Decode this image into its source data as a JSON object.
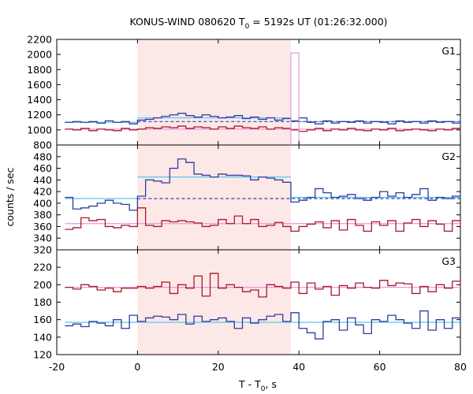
{
  "chart_data": {
    "type": "line",
    "title": "KONUS-WIND 080620 T",
    "title_sub": "0",
    "title_rest": " = 5192s UT (01:26:32.000)",
    "xlabel": "T - T",
    "xlabel_sub": "0",
    "xlabel_rest": ", s",
    "ylabel": "counts / sec",
    "xlim": [
      -20,
      80
    ],
    "x_ticks": [
      "-20",
      "0",
      "20",
      "40",
      "60",
      "80"
    ],
    "shaded_interval": [
      0,
      38
    ],
    "colors": {
      "shade": "#fde8e8",
      "red": "#a8182c",
      "blue": "#2b3f9e",
      "cyan": "#59c6ea",
      "pink": "#e69ad8",
      "dash": "#3b3bb5"
    },
    "panels": [
      {
        "label": "G1",
        "ylim": [
          800,
          2200
        ],
        "y_ticks": [
          800,
          1000,
          1200,
          1400,
          1600,
          1800,
          2000,
          2200
        ],
        "series": [
          {
            "role": "blue",
            "x": [
              -18,
              -16,
              -14,
              -12,
              -10,
              -8,
              -6,
              -4,
              -2,
              0,
              2,
              4,
              6,
              8,
              10,
              12,
              14,
              16,
              18,
              20,
              22,
              24,
              26,
              28,
              30,
              32,
              34,
              36,
              38,
              40,
              42,
              44,
              46,
              48,
              50,
              52,
              54,
              56,
              58,
              60,
              62,
              64,
              66,
              68,
              70,
              72,
              74,
              76,
              78,
              80
            ],
            "values": [
              1100,
              1110,
              1100,
              1110,
              1090,
              1120,
              1100,
              1110,
              1080,
              1130,
              1140,
              1160,
              1180,
              1200,
              1220,
              1190,
              1170,
              1200,
              1180,
              1160,
              1170,
              1190,
              1150,
              1170,
              1140,
              1160,
              1130,
              1150,
              1120,
              1160,
              1100,
              1080,
              1120,
              1090,
              1110,
              1100,
              1120,
              1090,
              1110,
              1100,
              1080,
              1120,
              1100,
              1110,
              1090,
              1120,
              1100,
              1110,
              1090,
              1120
            ]
          },
          {
            "role": "red",
            "x": [
              -18,
              -16,
              -14,
              -12,
              -10,
              -8,
              -6,
              -4,
              -2,
              0,
              2,
              4,
              6,
              8,
              10,
              12,
              14,
              16,
              18,
              20,
              22,
              24,
              26,
              28,
              30,
              32,
              34,
              36,
              38,
              40,
              42,
              44,
              46,
              48,
              50,
              52,
              54,
              56,
              58,
              60,
              62,
              64,
              66,
              68,
              70,
              72,
              74,
              76,
              78,
              80
            ],
            "values": [
              1010,
              1000,
              1020,
              990,
              1010,
              1000,
              990,
              1020,
              1000,
              1010,
              1030,
              1020,
              1040,
              1030,
              1050,
              1020,
              1040,
              1030,
              1010,
              1040,
              1020,
              1050,
              1030,
              1020,
              1040,
              1010,
              1030,
              1020,
              1000,
              980,
              1000,
              1020,
              990,
              1010,
              1000,
              1020,
              1000,
              990,
              1010,
              1000,
              1020,
              990,
              1000,
              1010,
              1000,
              990,
              1010,
              1000,
              1020,
              1000
            ]
          },
          {
            "role": "pink_outline",
            "x0": 38,
            "x1": 40,
            "value": 2020
          }
        ],
        "fits": [
          {
            "role": "cyan",
            "x0": -18,
            "x1": 0,
            "value": 1100
          },
          {
            "role": "cyan",
            "x0": 0,
            "x1": 38,
            "value": 1160
          },
          {
            "role": "cyan",
            "x0": 38,
            "x1": 80,
            "value": 1110
          },
          {
            "role": "pink",
            "x0": -18,
            "x1": 80,
            "value": 1010
          },
          {
            "role": "dash",
            "x0": 0,
            "x1": 80,
            "value": 1110
          }
        ]
      },
      {
        "label": "G2",
        "ylim": [
          320,
          500
        ],
        "y_ticks": [
          320,
          340,
          360,
          380,
          400,
          420,
          440,
          460,
          480
        ],
        "series": [
          {
            "role": "blue",
            "x": [
              -18,
              -16,
              -14,
              -12,
              -10,
              -8,
              -6,
              -4,
              -2,
              0,
              2,
              4,
              6,
              8,
              10,
              12,
              14,
              16,
              18,
              20,
              22,
              24,
              26,
              28,
              30,
              32,
              34,
              36,
              38,
              40,
              42,
              44,
              46,
              48,
              50,
              52,
              54,
              56,
              58,
              60,
              62,
              64,
              66,
              68,
              70,
              72,
              74,
              76,
              78,
              80
            ],
            "values": [
              410,
              390,
              392,
              395,
              400,
              405,
              400,
              398,
              388,
              412,
              440,
              438,
              435,
              460,
              476,
              470,
              450,
              448,
              445,
              450,
              448,
              448,
              447,
              440,
              445,
              443,
              440,
              436,
              402,
              405,
              410,
              425,
              418,
              410,
              412,
              415,
              408,
              405,
              410,
              420,
              412,
              418,
              410,
              415,
              425,
              405,
              410,
              408,
              412,
              415
            ]
          },
          {
            "role": "red",
            "x": [
              -18,
              -16,
              -14,
              -12,
              -10,
              -8,
              -6,
              -4,
              -2,
              0,
              2,
              4,
              6,
              8,
              10,
              12,
              14,
              16,
              18,
              20,
              22,
              24,
              26,
              28,
              30,
              32,
              34,
              36,
              38,
              40,
              42,
              44,
              46,
              48,
              50,
              52,
              54,
              56,
              58,
              60,
              62,
              64,
              66,
              68,
              70,
              72,
              74,
              76,
              78,
              80
            ],
            "values": [
              355,
              358,
              375,
              370,
              372,
              360,
              358,
              362,
              360,
              392,
              362,
              360,
              370,
              368,
              370,
              368,
              366,
              360,
              362,
              372,
              365,
              378,
              365,
              372,
              360,
              362,
              367,
              360,
              352,
              360,
              364,
              368,
              358,
              370,
              354,
              372,
              362,
              352,
              368,
              362,
              370,
              352,
              366,
              372,
              360,
              370,
              364,
              352,
              370,
              358
            ]
          }
        ],
        "fits": [
          {
            "role": "cyan",
            "x0": -18,
            "x1": 0,
            "value": 408
          },
          {
            "role": "cyan",
            "x0": 0,
            "x1": 38,
            "value": 445
          },
          {
            "role": "cyan",
            "x0": 38,
            "x1": 80,
            "value": 410
          },
          {
            "role": "pink",
            "x0": -18,
            "x1": 80,
            "value": 365
          },
          {
            "role": "dash",
            "x0": 0,
            "x1": 80,
            "value": 408
          }
        ]
      },
      {
        "label": "G3",
        "ylim": [
          120,
          240
        ],
        "y_ticks": [
          120,
          140,
          160,
          180,
          200,
          220
        ],
        "series": [
          {
            "role": "red",
            "x": [
              -18,
              -16,
              -14,
              -12,
              -10,
              -8,
              -6,
              -4,
              -2,
              0,
              2,
              4,
              6,
              8,
              10,
              12,
              14,
              16,
              18,
              20,
              22,
              24,
              26,
              28,
              30,
              32,
              34,
              36,
              38,
              40,
              42,
              44,
              46,
              48,
              50,
              52,
              54,
              56,
              58,
              60,
              62,
              64,
              66,
              68,
              70,
              72,
              74,
              76,
              78,
              80
            ],
            "values": [
              197,
              195,
              200,
              198,
              194,
              196,
              192,
              196,
              196,
              198,
              196,
              198,
              203,
              190,
              200,
              196,
              210,
              187,
              213,
              196,
              200,
              197,
              192,
              194,
              186,
              200,
              198,
              196,
              203,
              190,
              202,
              195,
              198,
              188,
              199,
              196,
              202,
              197,
              196,
              205,
              199,
              202,
              201,
              190,
              198,
              192,
              200,
              196,
              204,
              198
            ]
          },
          {
            "role": "blue",
            "x": [
              -18,
              -16,
              -14,
              -12,
              -10,
              -8,
              -6,
              -4,
              -2,
              0,
              2,
              4,
              6,
              8,
              10,
              12,
              14,
              16,
              18,
              20,
              22,
              24,
              26,
              28,
              30,
              32,
              34,
              36,
              38,
              40,
              42,
              44,
              46,
              48,
              50,
              52,
              54,
              56,
              58,
              60,
              62,
              64,
              66,
              68,
              70,
              72,
              74,
              76,
              78,
              80
            ],
            "values": [
              153,
              155,
              152,
              158,
              156,
              153,
              160,
              150,
              165,
              158,
              162,
              164,
              163,
              160,
              166,
              155,
              164,
              158,
              160,
              162,
              158,
              150,
              162,
              156,
              160,
              164,
              166,
              158,
              168,
              150,
              145,
              138,
              158,
              160,
              148,
              162,
              154,
              144,
              160,
              158,
              165,
              160,
              156,
              150,
              170,
              148,
              160,
              150,
              162,
              155
            ]
          }
        ],
        "fits": [
          {
            "role": "pink",
            "x0": -18,
            "x1": 80,
            "value": 197
          },
          {
            "role": "cyan",
            "x0": -18,
            "x1": 80,
            "value": 157
          }
        ]
      }
    ]
  }
}
